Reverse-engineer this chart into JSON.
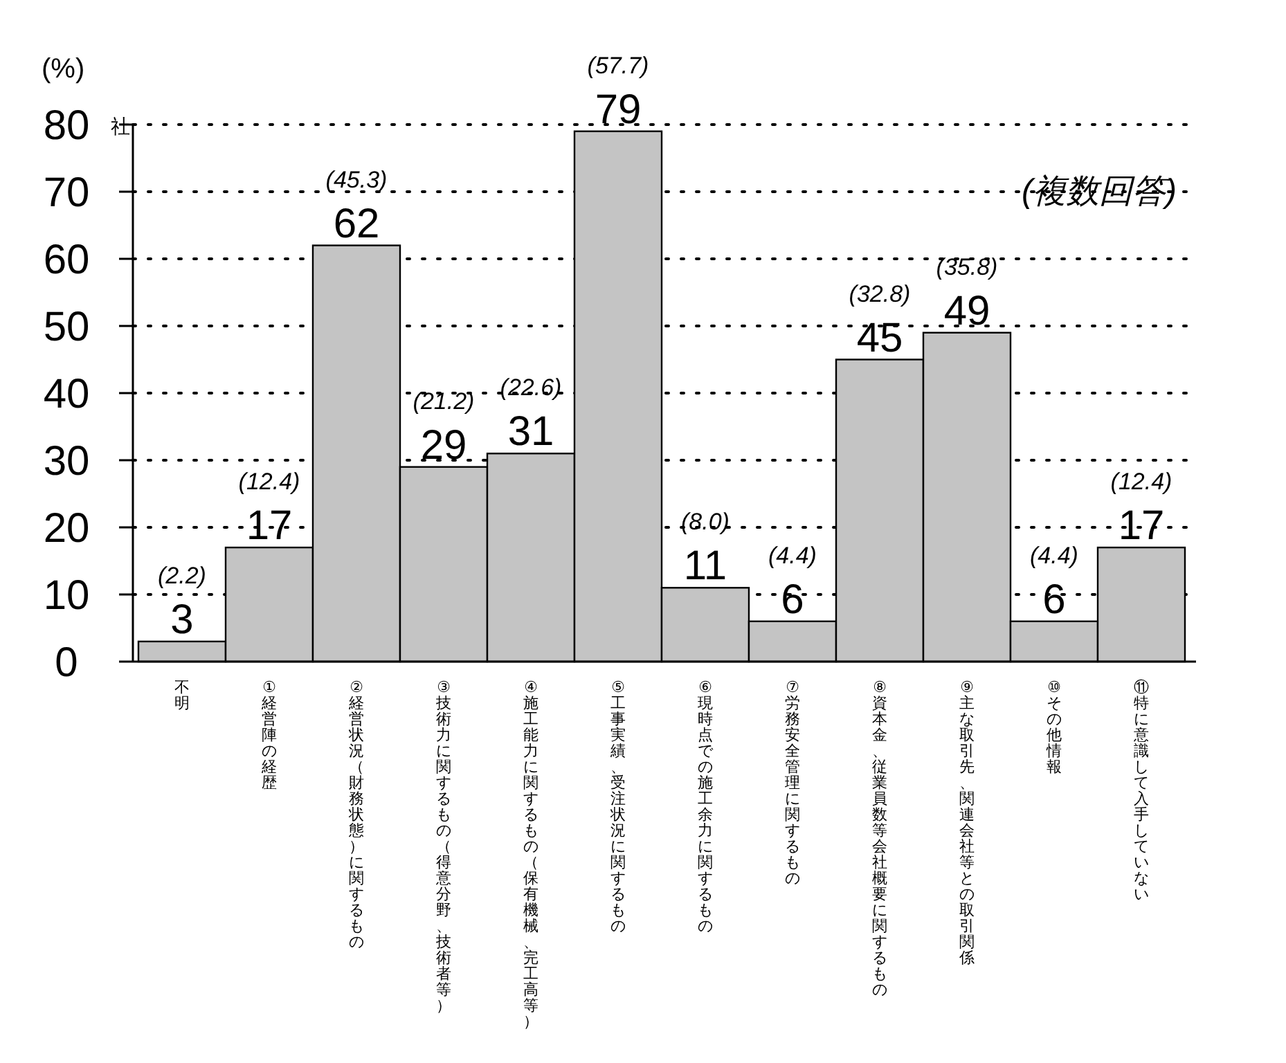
{
  "chart_data": {
    "type": "bar",
    "categories": [
      "不明",
      "①経営陣の経歴",
      "②経営状況（財務状態）に関するもの",
      "③技術力に関するもの（得意分野、技術者等）",
      "④施工能力に関するもの（保有機械、完工高等）",
      "⑤工事実績、受注状況に関するもの",
      "⑥現時点での施工余力に関するもの",
      "⑦労務安全管理に関するもの",
      "⑧資本金、従業員数等会社概要に関するもの",
      "⑨主な取引先、関連会社等との取引関係",
      "⑩その他情報",
      "⑪特に意識して入手していない"
    ],
    "values": [
      3,
      17,
      62,
      29,
      31,
      79,
      11,
      6,
      45,
      49,
      6,
      17
    ],
    "color": "#c4c4c4",
    "ylabel": "社",
    "ylim": [
      0,
      80
    ],
    "yticks": [
      0,
      10,
      20,
      30,
      40,
      50,
      60,
      70,
      80
    ],
    "grid": "y",
    "data_labels": true,
    "annotations": [
      "(%)",
      "(複数回答)",
      {
        "text": "(2.2)",
        "x": "不明",
        "y": 3
      },
      {
        "text": "(12.4)",
        "x": "①経営陣の経歴",
        "y": 17
      },
      {
        "text": "(45.3)",
        "x": "②経営状況（財務状態）に関するもの",
        "y": 62
      },
      {
        "text": "(21.2)",
        "x": "③技術力に関するもの（得意分野、技術者等）",
        "y": 29
      },
      {
        "text": "(22.6)",
        "x": "④施工能力に関するもの（保有機械、完工高等）",
        "y": 31
      },
      {
        "text": "(57.7)",
        "x": "⑤工事実績、受注状況に関するもの",
        "y": 79
      },
      {
        "text": "(8.0)",
        "x": "⑥現時点での施工余力に関するもの",
        "y": 11
      },
      {
        "text": "(4.4)",
        "x": "⑦労務安全管理に関するもの",
        "y": 6
      },
      {
        "text": "(32.8)",
        "x": "⑧資本金、従業員数等会社概要に関するもの",
        "y": 45
      },
      {
        "text": "(35.8)",
        "x": "⑨主な取引先、関連会社等との取引関係",
        "y": 49
      },
      {
        "text": "(4.4)",
        "x": "⑩その他情報",
        "y": 6
      },
      {
        "text": "(12.4)",
        "x": "⑪特に意識して入手していない",
        "y": 17
      }
    ]
  }
}
